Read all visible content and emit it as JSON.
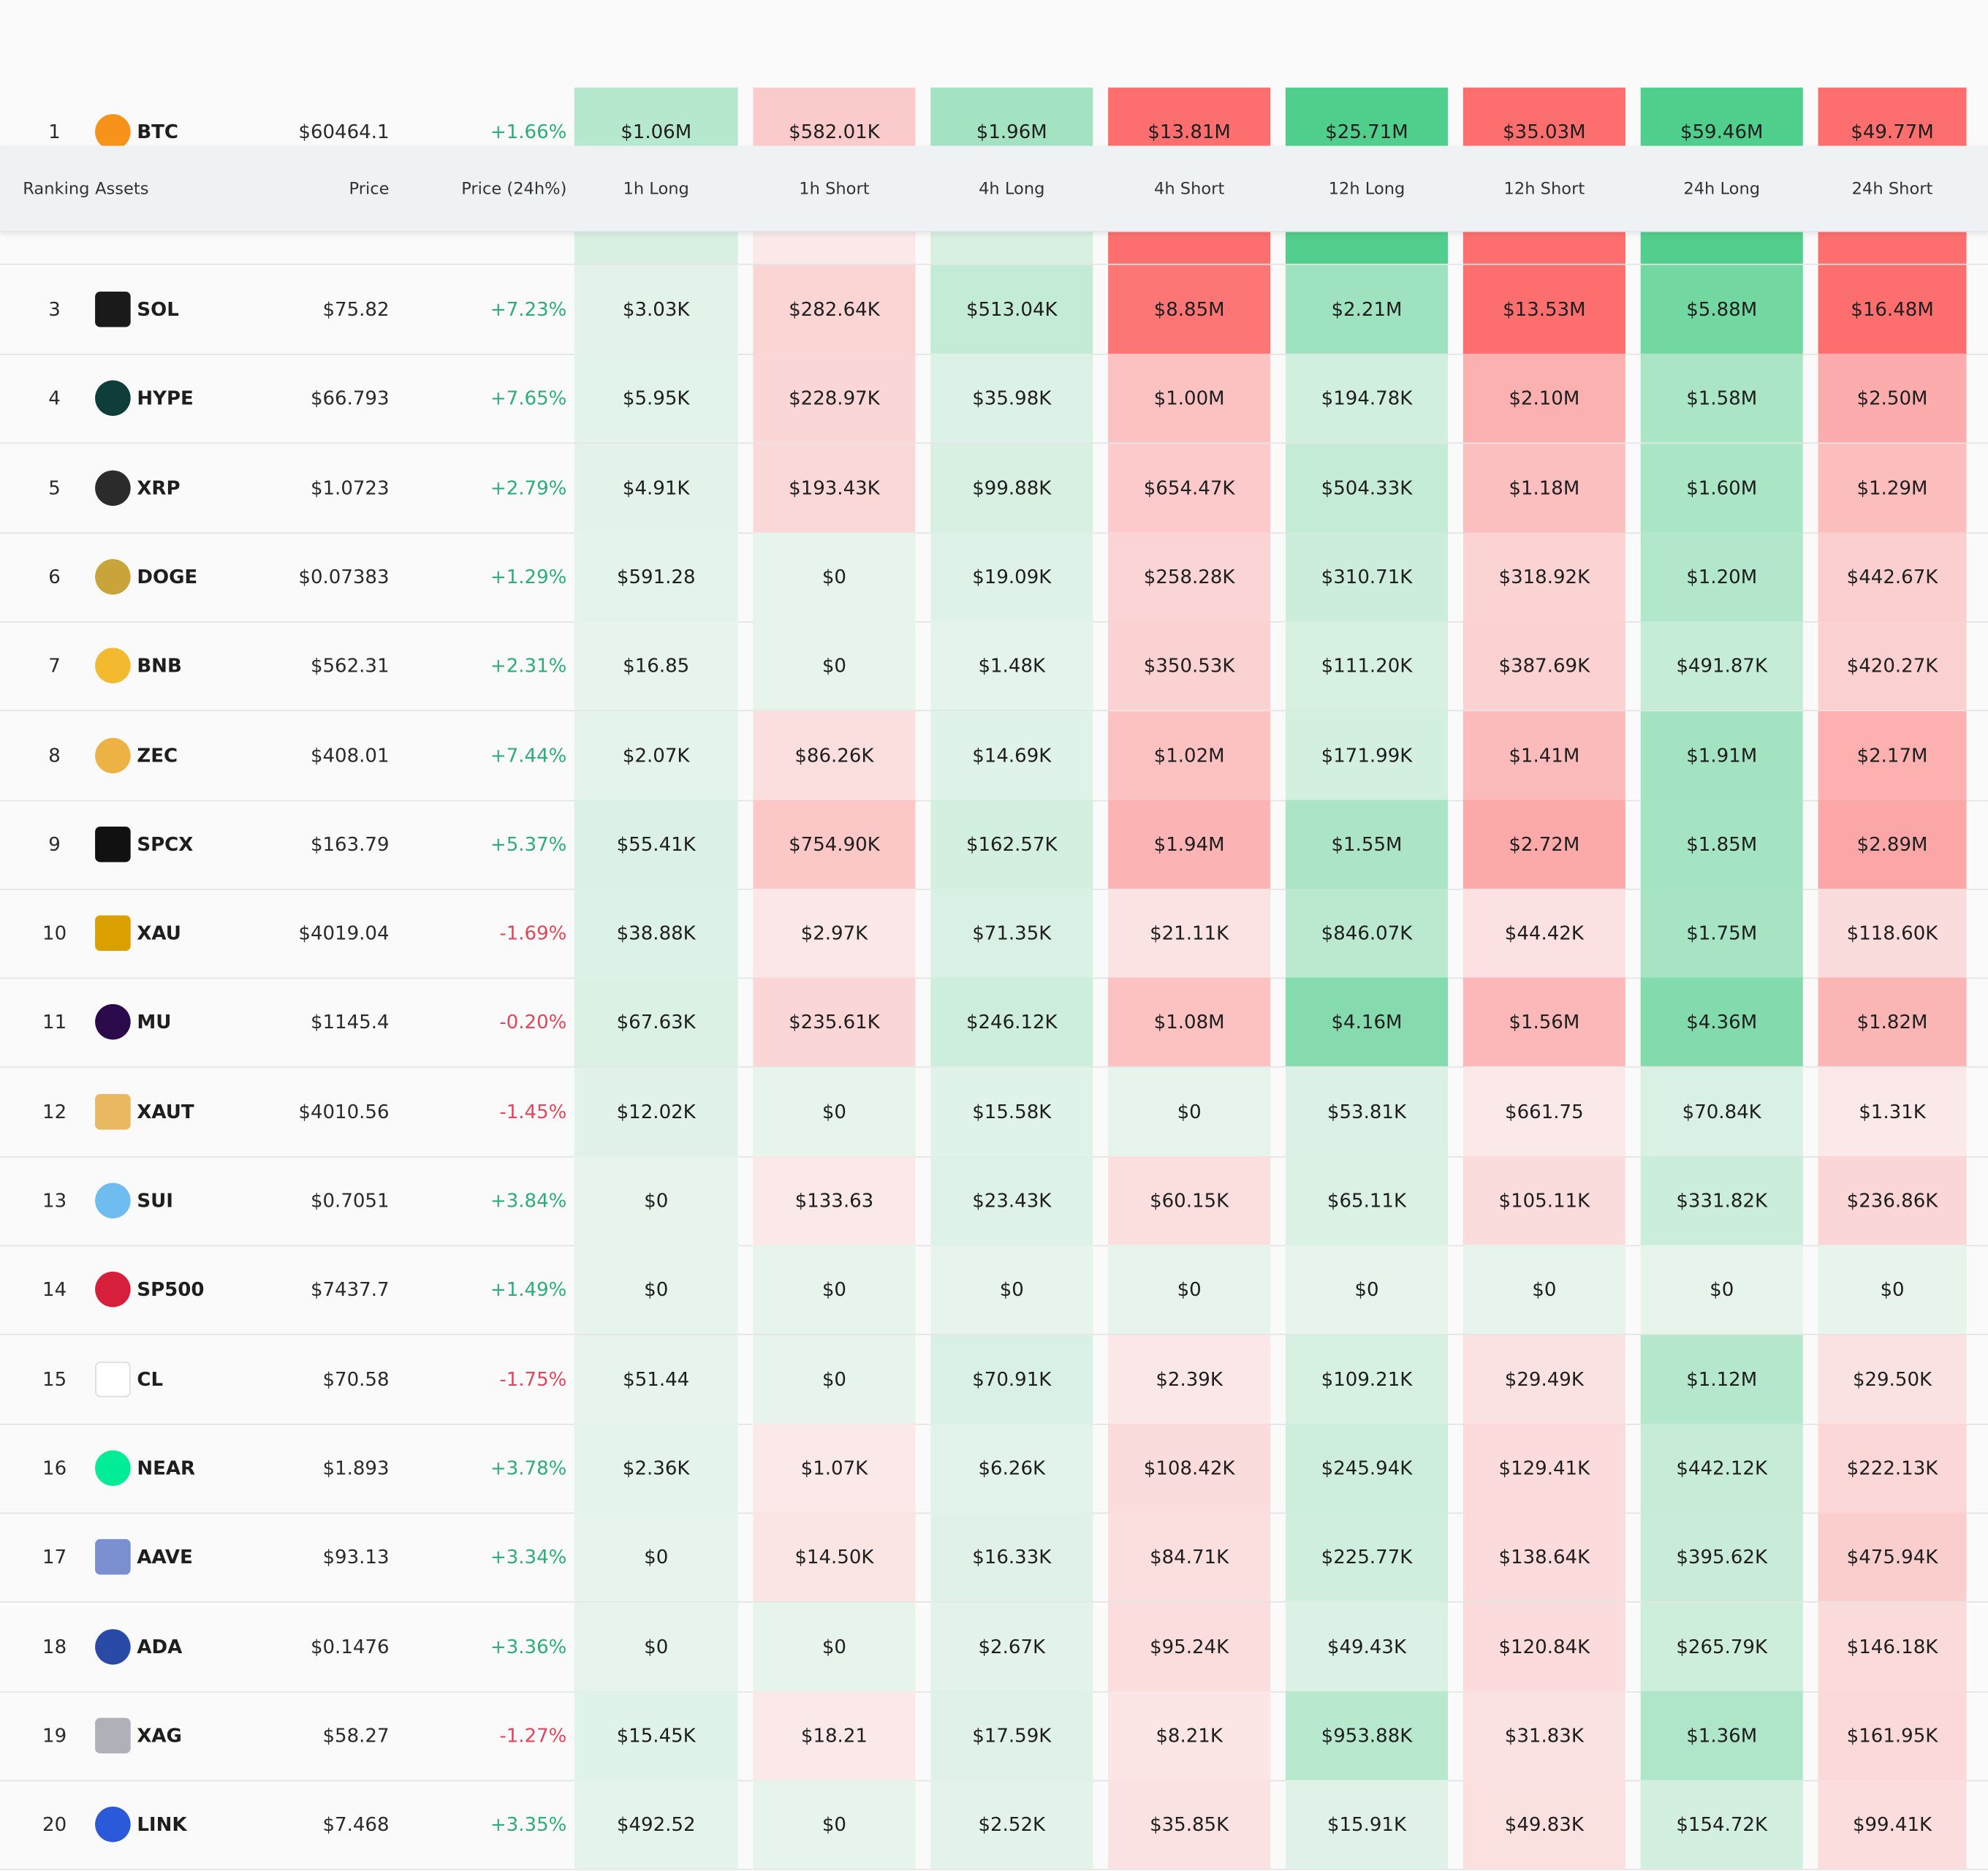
{
  "table": {
    "columns": [
      "Ranking",
      "Assets",
      "Price",
      "Price (24h%)",
      "1h Long",
      "1h Short",
      "4h Long",
      "4h Short",
      "12h Long",
      "12h Short",
      "24h Long",
      "24h Short"
    ],
    "rows": [
      {
        "rank": "1",
        "asset": "BTC",
        "price": "$60464.1",
        "change": "+1.66%",
        "values": [
          "$1.06M",
          "$582.01K",
          "$1.96M",
          "$13.81M",
          "$25.71M",
          "$35.03M",
          "$59.46M",
          "$49.77M"
        ]
      },
      {
        "rank": "3",
        "asset": "SOL",
        "price": "$75.82",
        "change": "+7.23%",
        "values": [
          "$3.03K",
          "$282.64K",
          "$513.04K",
          "$8.85M",
          "$2.21M",
          "$13.53M",
          "$5.88M",
          "$16.48M"
        ]
      },
      {
        "rank": "4",
        "asset": "HYPE",
        "price": "$66.793",
        "change": "+7.65%",
        "values": [
          "$5.95K",
          "$228.97K",
          "$35.98K",
          "$1.00M",
          "$194.78K",
          "$2.10M",
          "$1.58M",
          "$2.50M"
        ]
      },
      {
        "rank": "5",
        "asset": "XRP",
        "price": "$1.0723",
        "change": "+2.79%",
        "values": [
          "$4.91K",
          "$193.43K",
          "$99.88K",
          "$654.47K",
          "$504.33K",
          "$1.18M",
          "$1.60M",
          "$1.29M"
        ]
      },
      {
        "rank": "6",
        "asset": "DOGE",
        "price": "$0.07383",
        "change": "+1.29%",
        "values": [
          "$591.28",
          "$0",
          "$19.09K",
          "$258.28K",
          "$310.71K",
          "$318.92K",
          "$1.20M",
          "$442.67K"
        ]
      },
      {
        "rank": "7",
        "asset": "BNB",
        "price": "$562.31",
        "change": "+2.31%",
        "values": [
          "$16.85",
          "$0",
          "$1.48K",
          "$350.53K",
          "$111.20K",
          "$387.69K",
          "$491.87K",
          "$420.27K"
        ]
      },
      {
        "rank": "8",
        "asset": "ZEC",
        "price": "$408.01",
        "change": "+7.44%",
        "values": [
          "$2.07K",
          "$86.26K",
          "$14.69K",
          "$1.02M",
          "$171.99K",
          "$1.41M",
          "$1.91M",
          "$2.17M"
        ]
      },
      {
        "rank": "9",
        "asset": "SPCX",
        "price": "$163.79",
        "change": "+5.37%",
        "values": [
          "$55.41K",
          "$754.90K",
          "$162.57K",
          "$1.94M",
          "$1.55M",
          "$2.72M",
          "$1.85M",
          "$2.89M"
        ]
      },
      {
        "rank": "10",
        "asset": "XAU",
        "price": "$4019.04",
        "change": "-1.69%",
        "values": [
          "$38.88K",
          "$2.97K",
          "$71.35K",
          "$21.11K",
          "$846.07K",
          "$44.42K",
          "$1.75M",
          "$118.60K"
        ]
      },
      {
        "rank": "11",
        "asset": "MU",
        "price": "$1145.4",
        "change": "-0.20%",
        "values": [
          "$67.63K",
          "$235.61K",
          "$246.12K",
          "$1.08M",
          "$4.16M",
          "$1.56M",
          "$4.36M",
          "$1.82M"
        ]
      },
      {
        "rank": "12",
        "asset": "XAUT",
        "price": "$4010.56",
        "change": "-1.45%",
        "values": [
          "$12.02K",
          "$0",
          "$15.58K",
          "$0",
          "$53.81K",
          "$661.75",
          "$70.84K",
          "$1.31K"
        ]
      },
      {
        "rank": "13",
        "asset": "SUI",
        "price": "$0.7051",
        "change": "+3.84%",
        "values": [
          "$0",
          "$133.63",
          "$23.43K",
          "$60.15K",
          "$65.11K",
          "$105.11K",
          "$331.82K",
          "$236.86K"
        ]
      },
      {
        "rank": "14",
        "asset": "SP500",
        "price": "$7437.7",
        "change": "+1.49%",
        "values": [
          "$0",
          "$0",
          "$0",
          "$0",
          "$0",
          "$0",
          "$0",
          "$0"
        ]
      },
      {
        "rank": "15",
        "asset": "CL",
        "price": "$70.58",
        "change": "-1.75%",
        "values": [
          "$51.44",
          "$0",
          "$70.91K",
          "$2.39K",
          "$109.21K",
          "$29.49K",
          "$1.12M",
          "$29.50K"
        ]
      },
      {
        "rank": "16",
        "asset": "NEAR",
        "price": "$1.893",
        "change": "+3.78%",
        "values": [
          "$2.36K",
          "$1.07K",
          "$6.26K",
          "$108.42K",
          "$245.94K",
          "$129.41K",
          "$442.12K",
          "$222.13K"
        ]
      },
      {
        "rank": "17",
        "asset": "AAVE",
        "price": "$93.13",
        "change": "+3.34%",
        "values": [
          "$0",
          "$14.50K",
          "$16.33K",
          "$84.71K",
          "$225.77K",
          "$138.64K",
          "$395.62K",
          "$475.94K"
        ]
      },
      {
        "rank": "18",
        "asset": "ADA",
        "price": "$0.1476",
        "change": "+3.36%",
        "values": [
          "$0",
          "$0",
          "$2.67K",
          "$95.24K",
          "$49.43K",
          "$120.84K",
          "$265.79K",
          "$146.18K"
        ]
      },
      {
        "rank": "19",
        "asset": "XAG",
        "price": "$58.27",
        "change": "-1.27%",
        "values": [
          "$15.45K",
          "$18.21",
          "$17.59K",
          "$8.21K",
          "$953.88K",
          "$31.83K",
          "$1.36M",
          "$161.95K"
        ]
      },
      {
        "rank": "20",
        "asset": "LINK",
        "price": "$7.468",
        "change": "+3.35%",
        "values": [
          "$492.52",
          "$0",
          "$2.52K",
          "$35.85K",
          "$15.91K",
          "$49.83K",
          "$154.72K",
          "$99.41K"
        ]
      }
    ]
  }
}
